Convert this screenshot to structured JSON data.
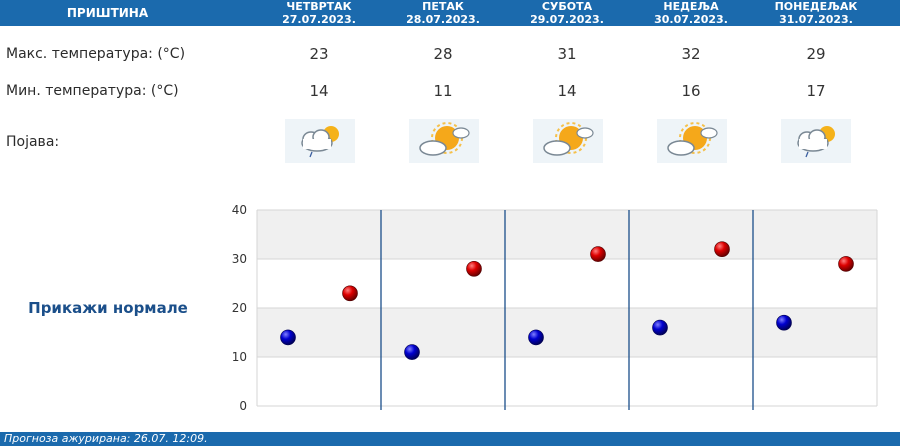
{
  "header": {
    "city": "ПРИШТИНА",
    "days": [
      {
        "name": "ЧЕТВРТАК",
        "date": "27.07.2023."
      },
      {
        "name": "ПЕТАК",
        "date": "28.07.2023."
      },
      {
        "name": "СУБОТА",
        "date": "29.07.2023."
      },
      {
        "name": "НЕДЕЉА",
        "date": "30.07.2023."
      },
      {
        "name": "ПОНЕДЕЉАК",
        "date": "31.07.2023."
      }
    ]
  },
  "rows": {
    "max_label": "Макс. температура: (°C)",
    "min_label": "Мин. температура: (°C)",
    "phenomenon_label": "Појава:"
  },
  "max_temps": [
    "23",
    "28",
    "31",
    "32",
    "29"
  ],
  "min_temps": [
    "14",
    "11",
    "14",
    "16",
    "17"
  ],
  "icons": [
    "partly-cloudy-rain-icon",
    "partly-sunny-icon",
    "partly-sunny-icon",
    "partly-sunny-icon",
    "partly-cloudy-rain-icon"
  ],
  "show_normals": "Прикажи нормале",
  "footer": "Прогноза ажурирана:  26.07.  12:09.",
  "colors": {
    "header": "#1b6aad",
    "max": "#cc0000",
    "min": "#0000cc",
    "divider": "#1b4f8a"
  },
  "chart_data": {
    "type": "scatter",
    "categories": [
      "27.07.2023.",
      "28.07.2023.",
      "29.07.2023.",
      "30.07.2023.",
      "31.07.2023."
    ],
    "series": [
      {
        "values": [
          14,
          11,
          14,
          16,
          17
        ]
      },
      {
        "values": [
          23,
          28,
          31,
          32,
          29
        ]
      }
    ],
    "ylim": [
      0,
      40
    ],
    "yticks": [
      "0",
      "10",
      "20",
      "30",
      "40"
    ],
    "grid": true
  }
}
